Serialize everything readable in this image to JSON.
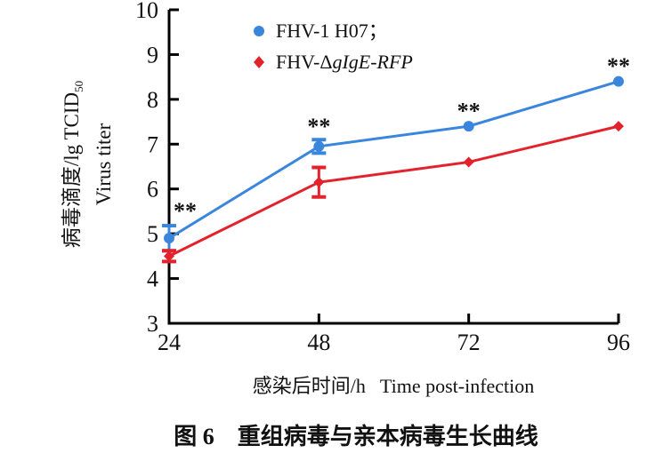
{
  "chart_data": {
    "type": "line",
    "x": [
      24,
      48,
      72,
      96
    ],
    "xlim": [
      24,
      96
    ],
    "ylim": [
      3,
      10
    ],
    "xticks": [
      24,
      48,
      72,
      96
    ],
    "yticks": [
      3,
      4,
      5,
      6,
      7,
      8,
      9,
      10
    ],
    "xlabel": "感染后时间/h   Time post-infection",
    "ylabel_cn": "病毒滴度/lg TCID",
    "ylabel_sub": "50",
    "ylabel_en": "Virus titer",
    "grid": false,
    "legend_position": "top-left",
    "series": [
      {
        "name": "FHV-1 H07；",
        "name_plain": "FHV-Δ",
        "name_italic": "",
        "color": "#3b86dd",
        "marker": "circle",
        "values": [
          4.9,
          6.95,
          7.4,
          8.4
        ],
        "errors": [
          0.28,
          0.15,
          0.05,
          0.05
        ]
      },
      {
        "name": "FHV-Δ",
        "name_italic": "gIgE-RFP",
        "color": "#e3222b",
        "marker": "diamond",
        "values": [
          4.5,
          6.15,
          6.6,
          7.4
        ],
        "errors": [
          0.12,
          0.33,
          0.05,
          0.05
        ]
      }
    ],
    "annotations": [
      "**",
      "**",
      "**",
      "**"
    ],
    "caption": "图 6　重组病毒与亲本病毒生长曲线"
  }
}
